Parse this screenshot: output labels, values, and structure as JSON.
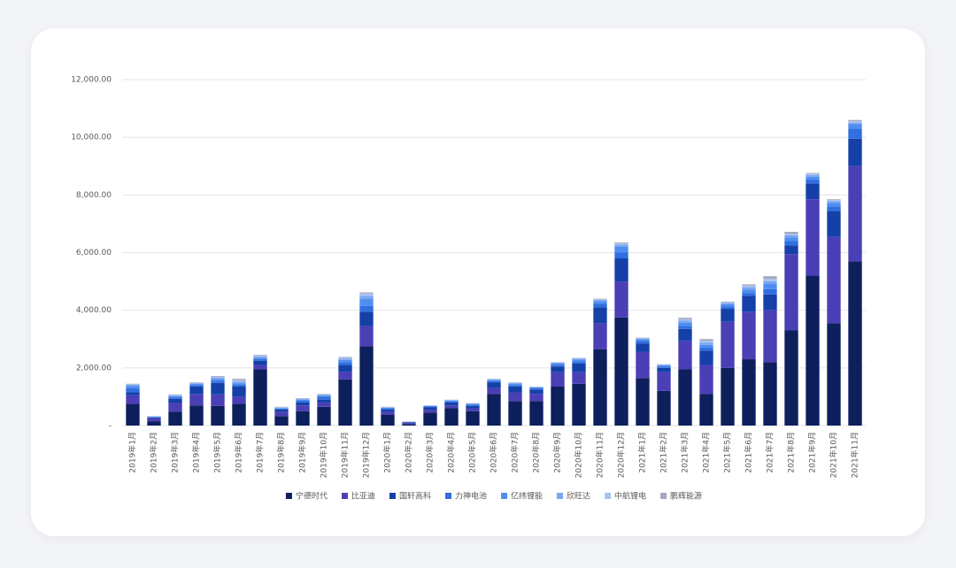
{
  "chart_data": {
    "type": "stacked-bar",
    "categories": [
      "2019年1月",
      "2019年2月",
      "2019年3月",
      "2019年4月",
      "2019年5月",
      "2019年6月",
      "2019年7月",
      "2019年8月",
      "2019年9月",
      "2019年10月",
      "2019年11月",
      "2019年12月",
      "2020年1月",
      "2020年2月",
      "2020年3月",
      "2020年4月",
      "2020年5月",
      "2020年6月",
      "2020年7月",
      "2020年8月",
      "2020年9月",
      "2020年10月",
      "2020年11月",
      "2020年12月",
      "2021年1月",
      "2021年2月",
      "2021年3月",
      "2021年4月",
      "2021年5月",
      "2021年6月",
      "2021年7月",
      "2021年8月",
      "2021年9月",
      "2021年10月",
      "2021年11月"
    ],
    "series": [
      {
        "name": "宁德时代",
        "color": "#0d1f5c",
        "values": [
          750,
          150,
          480,
          700,
          680,
          750,
          1950,
          330,
          500,
          650,
          1600,
          2750,
          380,
          50,
          450,
          600,
          500,
          1100,
          850,
          850,
          1350,
          1450,
          2650,
          3750,
          1650,
          1200,
          1950,
          1100,
          2000,
          2300,
          2200,
          3300,
          5200,
          3550,
          5700
        ]
      },
      {
        "name": "比亚迪",
        "color": "#4a3fb5",
        "values": [
          300,
          100,
          300,
          400,
          400,
          250,
          150,
          150,
          200,
          150,
          250,
          700,
          100,
          40,
          100,
          100,
          100,
          200,
          300,
          250,
          500,
          400,
          900,
          1250,
          900,
          650,
          1000,
          1000,
          1600,
          1650,
          1800,
          2650,
          2650,
          3000,
          3300
        ]
      },
      {
        "name": "国轩高科",
        "color": "#1440a8",
        "values": [
          100,
          30,
          150,
          250,
          400,
          350,
          150,
          80,
          100,
          100,
          250,
          500,
          80,
          20,
          80,
          100,
          80,
          200,
          200,
          150,
          200,
          300,
          550,
          800,
          300,
          150,
          400,
          500,
          450,
          550,
          550,
          300,
          550,
          900,
          950
        ]
      },
      {
        "name": "力神电池",
        "color": "#2f6fe0",
        "values": [
          150,
          20,
          50,
          50,
          80,
          60,
          60,
          30,
          60,
          100,
          100,
          200,
          40,
          10,
          30,
          40,
          40,
          40,
          50,
          40,
          60,
          80,
          120,
          200,
          80,
          50,
          100,
          100,
          80,
          100,
          180,
          150,
          130,
          150,
          350
        ]
      },
      {
        "name": "亿纬锂能",
        "color": "#4f8ef0",
        "values": [
          80,
          10,
          40,
          50,
          60,
          60,
          50,
          20,
          40,
          40,
          80,
          250,
          20,
          8,
          20,
          30,
          30,
          40,
          50,
          30,
          50,
          60,
          100,
          200,
          60,
          40,
          120,
          100,
          80,
          120,
          180,
          120,
          100,
          120,
          150
        ]
      },
      {
        "name": "欣旺达",
        "color": "#7aa6f2",
        "values": [
          30,
          10,
          20,
          20,
          40,
          50,
          30,
          15,
          20,
          20,
          40,
          100,
          10,
          5,
          10,
          15,
          15,
          20,
          25,
          15,
          20,
          30,
          40,
          80,
          30,
          20,
          70,
          80,
          40,
          80,
          100,
          80,
          60,
          60,
          50
        ]
      },
      {
        "name": "中航锂电",
        "color": "#a9c2f2",
        "values": [
          20,
          5,
          20,
          15,
          30,
          50,
          30,
          15,
          15,
          20,
          30,
          80,
          10,
          4,
          5,
          10,
          10,
          10,
          15,
          10,
          10,
          20,
          20,
          40,
          20,
          10,
          50,
          60,
          30,
          60,
          80,
          60,
          40,
          40,
          50
        ]
      },
      {
        "name": "鹏辉能源",
        "color": "#a3a8bd",
        "values": [
          20,
          5,
          20,
          15,
          30,
          50,
          30,
          10,
          15,
          20,
          30,
          40,
          10,
          3,
          5,
          5,
          5,
          10,
          10,
          5,
          10,
          10,
          20,
          30,
          10,
          10,
          50,
          60,
          20,
          40,
          90,
          60,
          30,
          30,
          50
        ]
      }
    ],
    "ylim": [
      0,
      12000
    ],
    "yticks": [
      {
        "value": 0,
        "label": "-"
      },
      {
        "value": 2000,
        "label": "2,000.00"
      },
      {
        "value": 4000,
        "label": "4,000.00"
      },
      {
        "value": 6000,
        "label": "6,000.00"
      },
      {
        "value": 8000,
        "label": "8,000.00"
      },
      {
        "value": 10000,
        "label": "10,000.00"
      },
      {
        "value": 12000,
        "label": "12,000.00"
      }
    ],
    "grid": true,
    "legend": "bottom"
  }
}
